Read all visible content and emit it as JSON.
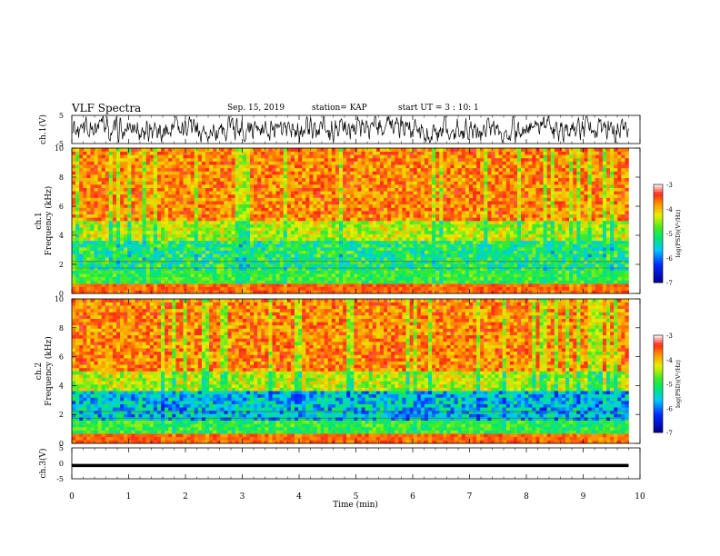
{
  "header": {
    "title": "VLF Spectra",
    "date": "Sep. 15, 2019",
    "station": "station= KAP",
    "start": "start  UT =   3 : 10: 1"
  },
  "chart_data": [
    {
      "type": "line",
      "panel": "ch1-waveform",
      "ylabel": "ch.1(V)",
      "ylim": [
        -5,
        5
      ],
      "yticks": [
        "5",
        "-5"
      ],
      "xlim": [
        0,
        10
      ]
    },
    {
      "type": "heatmap",
      "panel": "ch1-spectrogram",
      "ylabel_line1": "ch.1",
      "ylabel_line2": "Frequency (kHz)",
      "ylim": [
        0,
        10
      ],
      "yticks": [
        "0",
        "2",
        "4",
        "6",
        "8",
        "10"
      ],
      "xlim": [
        0,
        10
      ],
      "colorbar": {
        "label": "log(PSD)(V²/Hz)",
        "ticks": [
          "-3",
          "-4",
          "-5",
          "-6",
          "-7"
        ],
        "range": [
          -7,
          -3
        ]
      }
    },
    {
      "type": "heatmap",
      "panel": "ch2-spectrogram",
      "ylabel_line1": "ch.2",
      "ylabel_line2": "Frequency (kHz)",
      "ylim": [
        0,
        10
      ],
      "yticks": [
        "0",
        "2",
        "4",
        "6",
        "8",
        "10"
      ],
      "xlim": [
        0,
        10
      ],
      "colorbar": {
        "label": "log(PSD)(V²/Hz)",
        "ticks": [
          "-3",
          "-4",
          "-5",
          "-6",
          "-7"
        ],
        "range": [
          -7,
          -3
        ]
      }
    },
    {
      "type": "line",
      "panel": "ch3-waveform",
      "ylabel": "ch.3(V)",
      "ylim": [
        -5,
        5
      ],
      "yticks": [
        "5",
        "0",
        "-5"
      ],
      "xlim": [
        0,
        10
      ],
      "xlabel": "Time (min)",
      "xticks": [
        "0",
        "1",
        "2",
        "3",
        "4",
        "5",
        "6",
        "7",
        "8",
        "9",
        "10"
      ]
    }
  ]
}
